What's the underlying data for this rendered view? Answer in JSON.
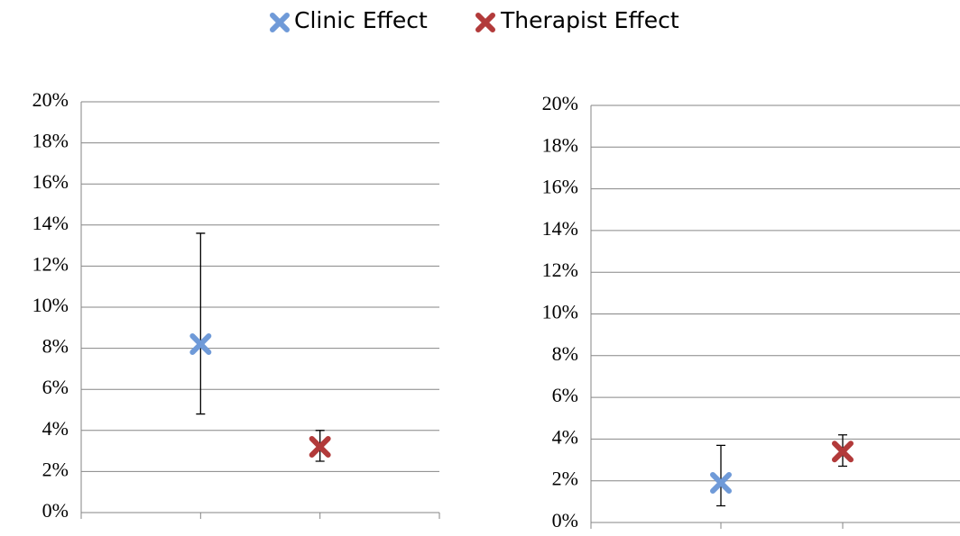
{
  "chart_data": [
    {
      "type": "errorbar",
      "series": [
        {
          "name": "Clinic Effect",
          "color": "#6f9ad8",
          "x": [
            1
          ],
          "values": [
            8.2
          ],
          "lower": [
            4.8
          ],
          "upper": [
            13.6
          ]
        },
        {
          "name": "Therapist Effect",
          "color": "#b23a3a",
          "x": [
            2
          ],
          "values": [
            3.2
          ],
          "lower": [
            2.5
          ],
          "upper": [
            4.0
          ]
        }
      ],
      "xlim": [
        0,
        3
      ],
      "xticks": [
        0,
        1,
        2,
        3
      ],
      "ylim": [
        0,
        20
      ],
      "yticks": [
        {
          "value": 0,
          "label": "0%"
        },
        {
          "value": 2,
          "label": "2%"
        },
        {
          "value": 4,
          "label": "4%"
        },
        {
          "value": 6,
          "label": "6%"
        },
        {
          "value": 8,
          "label": "8%"
        },
        {
          "value": 10,
          "label": "10%"
        },
        {
          "value": 12,
          "label": "12%"
        },
        {
          "value": 14,
          "label": "14%"
        },
        {
          "value": 16,
          "label": "16%"
        },
        {
          "value": 18,
          "label": "18%"
        },
        {
          "value": 20,
          "label": "20%"
        }
      ],
      "grid": true
    },
    {
      "type": "errorbar",
      "series": [
        {
          "color": "#6f9ad8",
          "x": [
            1
          ],
          "values": [
            1.9
          ],
          "lower": [
            0.8
          ],
          "upper": [
            3.7
          ]
        },
        {
          "color": "#b23a3a",
          "x": [
            2
          ],
          "values": [
            3.4
          ],
          "lower": [
            2.7
          ],
          "upper": [
            4.2
          ]
        }
      ],
      "xlim": [
        0,
        3
      ],
      "xticks": [
        0,
        1,
        2,
        3
      ],
      "ylim": [
        0,
        20
      ],
      "yticks": [
        {
          "value": 0,
          "label": "0%"
        },
        {
          "value": 2,
          "label": "2%"
        },
        {
          "value": 4,
          "label": "4%"
        },
        {
          "value": 6,
          "label": "6%"
        },
        {
          "value": 8,
          "label": "8%"
        },
        {
          "value": 10,
          "label": "10%"
        },
        {
          "value": 12,
          "label": "12%"
        },
        {
          "value": 14,
          "label": "14%"
        },
        {
          "value": 16,
          "label": "16%"
        },
        {
          "value": 18,
          "label": "18%"
        },
        {
          "value": 20,
          "label": "20%"
        }
      ],
      "grid": true
    }
  ]
}
